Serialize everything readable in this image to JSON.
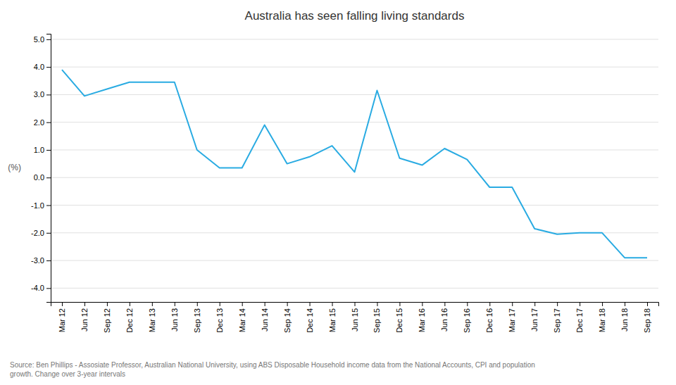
{
  "chart_data": {
    "type": "line",
    "title": "Australia has seen falling living standards",
    "ylabel": "(%)",
    "source": "Source: Ben Phillips - Assosiate Professor, Australian National University, using ABS Disposable Household income data from the National Accounts, CPI and population\ngrowth. Change over 3-year intervals",
    "categories": [
      "Mar 12",
      "Jun 12",
      "Sep 12",
      "Dec 12",
      "Mar 13",
      "Jun 13",
      "Sep 13",
      "Dec 13",
      "Mar 14",
      "Jun 14",
      "Sep 14",
      "Dec 14",
      "Mar 15",
      "Jun 15",
      "Sep 15",
      "Dec 15",
      "Mar 16",
      "Jun 16",
      "Sep 16",
      "Dec 16",
      "Mar 17",
      "Jun 17",
      "Sep 17",
      "Dec 17",
      "Mar 18",
      "Jun 18",
      "Sep 18"
    ],
    "values": [
      3.9,
      2.95,
      3.2,
      3.45,
      3.45,
      3.45,
      1.0,
      0.35,
      0.35,
      1.9,
      0.5,
      0.75,
      1.15,
      0.2,
      3.15,
      0.7,
      0.45,
      1.05,
      0.65,
      -0.35,
      -0.35,
      -1.85,
      -2.05,
      -2.0,
      -2.0,
      -2.9,
      -2.9
    ],
    "color": "#29abe2",
    "ylim": [
      -4.5,
      5.2
    ],
    "yticks": [
      {
        "value": -4.0,
        "label": "-4.0"
      },
      {
        "value": -3.0,
        "label": "-3.0"
      },
      {
        "value": -2.0,
        "label": "-2.0"
      },
      {
        "value": -1.0,
        "label": "-1.0"
      },
      {
        "value": 0.0,
        "label": "0.0"
      },
      {
        "value": 1.0,
        "label": "1.0"
      },
      {
        "value": 2.0,
        "label": "2.0"
      },
      {
        "value": 3.0,
        "label": "3.0"
      },
      {
        "value": 4.0,
        "label": "4.0"
      },
      {
        "value": 5.0,
        "label": "5.0"
      }
    ],
    "grid": true
  }
}
